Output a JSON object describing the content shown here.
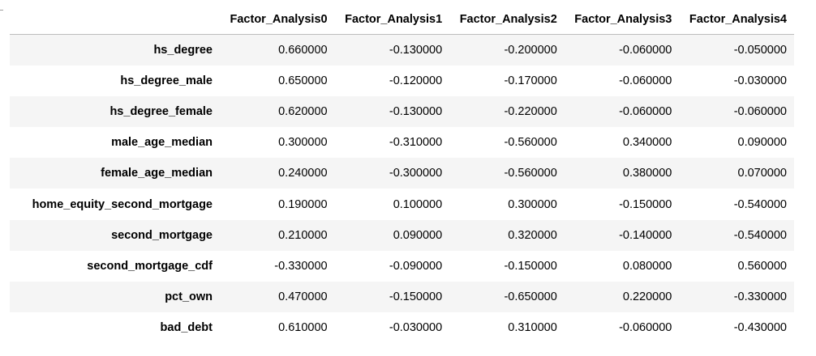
{
  "table": {
    "index_header": "",
    "columns": [
      "Factor_Analysis0",
      "Factor_Analysis1",
      "Factor_Analysis2",
      "Factor_Analysis3",
      "Factor_Analysis4"
    ],
    "rows": [
      {
        "index": "hs_degree",
        "values": [
          "0.660000",
          "-0.130000",
          "-0.200000",
          "-0.060000",
          "-0.050000"
        ]
      },
      {
        "index": "hs_degree_male",
        "values": [
          "0.650000",
          "-0.120000",
          "-0.170000",
          "-0.060000",
          "-0.030000"
        ]
      },
      {
        "index": "hs_degree_female",
        "values": [
          "0.620000",
          "-0.130000",
          "-0.220000",
          "-0.060000",
          "-0.060000"
        ]
      },
      {
        "index": "male_age_median",
        "values": [
          "0.300000",
          "-0.310000",
          "-0.560000",
          "0.340000",
          "0.090000"
        ]
      },
      {
        "index": "female_age_median",
        "values": [
          "0.240000",
          "-0.300000",
          "-0.560000",
          "0.380000",
          "0.070000"
        ]
      },
      {
        "index": "home_equity_second_mortgage",
        "values": [
          "0.190000",
          "0.100000",
          "0.300000",
          "-0.150000",
          "-0.540000"
        ]
      },
      {
        "index": "second_mortgage",
        "values": [
          "0.210000",
          "0.090000",
          "0.320000",
          "-0.140000",
          "-0.540000"
        ]
      },
      {
        "index": "second_mortgage_cdf",
        "values": [
          "-0.330000",
          "-0.090000",
          "-0.150000",
          "0.080000",
          "0.560000"
        ]
      },
      {
        "index": "pct_own",
        "values": [
          "0.470000",
          "-0.150000",
          "-0.650000",
          "0.220000",
          "-0.330000"
        ]
      },
      {
        "index": "bad_debt",
        "values": [
          "0.610000",
          "-0.030000",
          "0.310000",
          "-0.060000",
          "-0.430000"
        ]
      }
    ]
  }
}
